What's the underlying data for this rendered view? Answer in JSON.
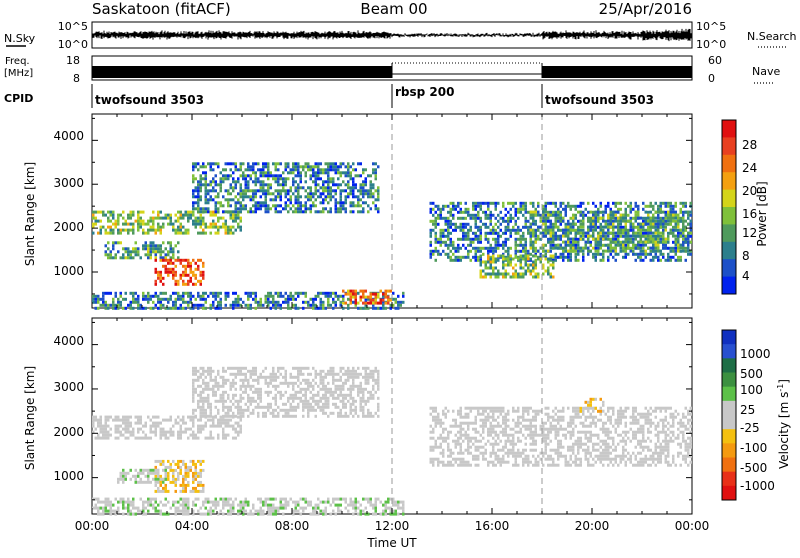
{
  "header": {
    "station": "Saskatoon (fitACF)",
    "beam": "Beam 00",
    "date": "25/Apr/2016"
  },
  "top_panels": {
    "nsky_label": "N.Sky",
    "nsky_ticks": [
      "10^5",
      "10^0"
    ],
    "nsearch_label": "N.Search",
    "freq_label_1": "Freq.",
    "freq_label_2": "[MHz]",
    "freq_ticks": [
      "18",
      "8"
    ],
    "nave_ticks": [
      "60",
      "0"
    ],
    "nave_label": "Nave",
    "cpid_label": "CPID",
    "cpid_segments": [
      {
        "label": "twofsound 3503",
        "start_h": 0,
        "end_h": 12
      },
      {
        "label": "rbsp 200",
        "start_h": 12,
        "end_h": 18
      },
      {
        "label": "twofsound 3503",
        "start_h": 18,
        "end_h": 24
      }
    ]
  },
  "power_panel": {
    "ylabel": "Slant Range [km]",
    "yticks": [
      "4000",
      "3000",
      "2000",
      "1000"
    ],
    "colorbar_label": "Power [dB]",
    "colorbar_ticks": [
      "28",
      "24",
      "20",
      "16",
      "12",
      "8",
      "4"
    ],
    "colors": [
      "#0022ee",
      "#1c50c8",
      "#2c7f8c",
      "#4f9a5c",
      "#7fc03a",
      "#d4d41a",
      "#f4a010",
      "#f07010",
      "#e84020",
      "#e01010"
    ]
  },
  "velocity_panel": {
    "ylabel": "Slant Range [km]",
    "yticks": [
      "4000",
      "3000",
      "2000",
      "1000"
    ],
    "colorbar_label": "Velocity [m s",
    "colorbar_label_sup": "-1",
    "colorbar_label_end": "]",
    "colorbar_ticks": [
      "1000",
      "500",
      "100",
      "25",
      "-25",
      "-100",
      "-500",
      "-1000"
    ],
    "colors": [
      "#1030c0",
      "#2850d0",
      "#1e6e46",
      "#3c9040",
      "#5cc048",
      "#c8c8c8",
      "#c8c8c8",
      "#f4c010",
      "#f49a10",
      "#f07010",
      "#e83018",
      "#e01010"
    ]
  },
  "x_axis": {
    "label": "Time UT",
    "ticks": [
      "00:00",
      "04:00",
      "08:00",
      "12:00",
      "16:00",
      "20:00",
      "00:00"
    ]
  },
  "chart_data": {
    "type": "heatmap",
    "title": "Saskatoon (fitACF)",
    "subtitle": "Beam 00",
    "date": "25/Apr/2016",
    "xlabel": "Time UT",
    "ylabel": "Slant Range [km]",
    "xlim_hours": [
      0,
      24
    ],
    "ylim_km": [
      180,
      4600
    ],
    "panels": [
      {
        "name": "Power",
        "unit": "dB",
        "color_scale": [
          4,
          8,
          12,
          16,
          20,
          24,
          28
        ],
        "regions": [
          {
            "t0": 0.0,
            "t1": 6.0,
            "r0": 1900,
            "r1": 2400,
            "level": 14
          },
          {
            "t0": 0.5,
            "t1": 3.5,
            "r0": 1300,
            "r1": 1700,
            "level": 12
          },
          {
            "t0": 2.5,
            "t1": 4.5,
            "r0": 700,
            "r1": 1300,
            "level": 24
          },
          {
            "t0": 4.0,
            "t1": 11.5,
            "r0": 2400,
            "r1": 3500,
            "level": 10
          },
          {
            "t0": 0.0,
            "t1": 12.5,
            "r0": 200,
            "r1": 550,
            "level": 10
          },
          {
            "t0": 10.0,
            "t1": 12.0,
            "r0": 300,
            "r1": 600,
            "level": 22
          },
          {
            "t0": 13.5,
            "t1": 24.0,
            "r0": 1300,
            "r1": 2600,
            "level": 10
          },
          {
            "t0": 15.5,
            "t1": 18.5,
            "r0": 900,
            "r1": 1400,
            "level": 14
          },
          {
            "t0": 17.5,
            "t1": 24.0,
            "r0": 1500,
            "r1": 2400,
            "level": 12
          }
        ]
      },
      {
        "name": "Velocity",
        "unit": "m s^-1",
        "color_scale": [
          -1000,
          -500,
          -100,
          -25,
          25,
          100,
          500,
          1000
        ],
        "regions": [
          {
            "t0": 0.0,
            "t1": 6.0,
            "r0": 1900,
            "r1": 2400,
            "level": 0
          },
          {
            "t0": 4.0,
            "t1": 11.5,
            "r0": 2400,
            "r1": 3500,
            "level": 0
          },
          {
            "t0": 2.5,
            "t1": 4.5,
            "r0": 700,
            "r1": 1400,
            "level": -200
          },
          {
            "t0": 1.0,
            "t1": 3.0,
            "r0": 900,
            "r1": 1200,
            "level": 80
          },
          {
            "t0": 0.0,
            "t1": 12.5,
            "r0": 200,
            "r1": 550,
            "level": 50
          },
          {
            "t0": 13.5,
            "t1": 24.0,
            "r0": 1300,
            "r1": 2600,
            "level": 0
          },
          {
            "t0": 19.5,
            "t1": 20.5,
            "r0": 2500,
            "r1": 2800,
            "level": -200
          }
        ]
      }
    ]
  }
}
